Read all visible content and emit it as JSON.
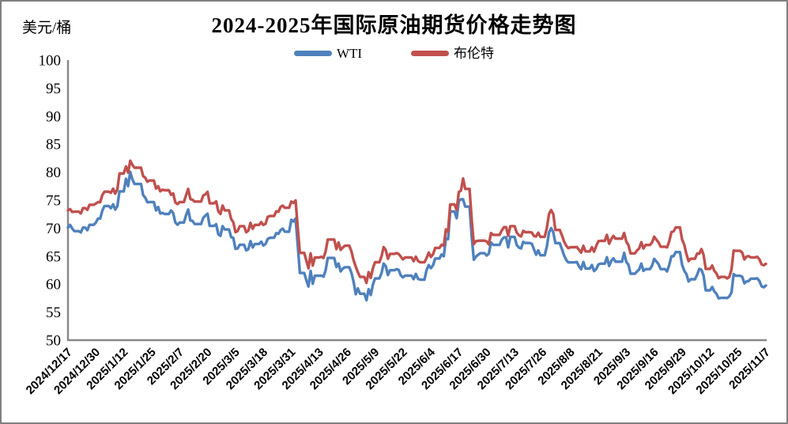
{
  "frame": {
    "border_color": "#808080",
    "background": "#ffffff",
    "axis_color": "#898989"
  },
  "chart_data": {
    "type": "line",
    "title": "2024-2025年国际原油期货价格走势图",
    "ylabel": "美元/桶",
    "ylim": [
      50,
      100
    ],
    "ytick_step": 5,
    "ytick_labels": [
      "100",
      "95",
      "90",
      "85",
      "80",
      "75",
      "70",
      "65",
      "60",
      "55",
      "50"
    ],
    "grid": false,
    "legend_position": "top-center",
    "x_tick_interval_days": 13,
    "x_tick_labels": [
      "2024/12/17",
      "2024/12/30",
      "2025/1/12",
      "2025/1/25",
      "2025/2/7",
      "2025/2/20",
      "2025/3/5",
      "2025/3/18",
      "2025/3/31",
      "2025/4/13",
      "2025/4/26",
      "2025/5/9",
      "2025/5/22",
      "2025/6/4",
      "2025/6/17",
      "2025/6/30",
      "2025/7/13",
      "2025/7/26",
      "2025/8/8",
      "2025/8/21",
      "2025/9/3",
      "2025/9/16",
      "2025/9/29",
      "2025/10/12",
      "2025/10/25",
      "2025/11/7"
    ],
    "series": [
      {
        "name": "WTI",
        "color": "#4F81BD"
      },
      {
        "name": "布伦特",
        "color": "#C0504D"
      }
    ],
    "points_format": [
      "date",
      "WTI",
      "布伦特"
    ],
    "points": [
      [
        "2024/12/17",
        70.08,
        73.19
      ],
      [
        "2024/12/18",
        70.58,
        73.39
      ],
      [
        "2024/12/19",
        69.91,
        72.88
      ],
      [
        "2024/12/20",
        69.46,
        72.94
      ],
      [
        "2024/12/23",
        69.24,
        72.63
      ],
      [
        "2024/12/24",
        70.1,
        73.58
      ],
      [
        "2024/12/26",
        69.62,
        73.26
      ],
      [
        "2024/12/27",
        70.6,
        74.17
      ],
      [
        "2024/12/30",
        70.99,
        74.39
      ],
      [
        "2024/12/31",
        71.72,
        74.64
      ],
      [
        "2025/1/2",
        73.13,
        75.93
      ],
      [
        "2025/1/3",
        73.96,
        76.51
      ],
      [
        "2025/1/6",
        73.56,
        76.3
      ],
      [
        "2025/1/7",
        74.25,
        77.05
      ],
      [
        "2025/1/8",
        73.32,
        76.16
      ],
      [
        "2025/1/9",
        73.92,
        76.92
      ],
      [
        "2025/1/10",
        76.57,
        79.76
      ],
      [
        "2025/1/13",
        78.82,
        81.01
      ],
      [
        "2025/1/14",
        77.5,
        79.92
      ],
      [
        "2025/1/15",
        80.04,
        82.03
      ],
      [
        "2025/1/16",
        78.68,
        81.29
      ],
      [
        "2025/1/17",
        77.88,
        80.79
      ],
      [
        "2025/1/21",
        75.89,
        79.29
      ],
      [
        "2025/1/22",
        75.44,
        79.0
      ],
      [
        "2025/1/23",
        74.62,
        78.29
      ],
      [
        "2025/1/24",
        74.66,
        78.5
      ],
      [
        "2025/1/27",
        73.17,
        77.08
      ],
      [
        "2025/1/28",
        73.77,
        77.49
      ],
      [
        "2025/1/29",
        72.62,
        76.58
      ],
      [
        "2025/1/30",
        72.73,
        76.87
      ],
      [
        "2025/1/31",
        72.53,
        76.76
      ],
      [
        "2025/2/3",
        73.16,
        75.96
      ],
      [
        "2025/2/4",
        72.7,
        76.2
      ],
      [
        "2025/2/5",
        71.03,
        74.61
      ],
      [
        "2025/2/6",
        70.61,
        74.29
      ],
      [
        "2025/2/7",
        71.0,
        74.66
      ],
      [
        "2025/2/10",
        72.32,
        75.87
      ],
      [
        "2025/2/11",
        73.32,
        77.0
      ],
      [
        "2025/2/12",
        71.37,
        75.18
      ],
      [
        "2025/2/13",
        71.29,
        75.05
      ],
      [
        "2025/2/14",
        70.74,
        74.74
      ],
      [
        "2025/2/18",
        71.85,
        75.84
      ],
      [
        "2025/2/19",
        72.25,
        76.04
      ],
      [
        "2025/2/20",
        72.57,
        76.48
      ],
      [
        "2025/2/21",
        70.4,
        74.43
      ],
      [
        "2025/2/24",
        70.7,
        74.78
      ],
      [
        "2025/2/25",
        68.93,
        73.02
      ],
      [
        "2025/2/26",
        68.62,
        72.53
      ],
      [
        "2025/2/27",
        70.35,
        74.04
      ],
      [
        "2025/2/28",
        69.76,
        73.18
      ],
      [
        "2025/3/3",
        68.37,
        71.62
      ],
      [
        "2025/3/4",
        68.26,
        71.04
      ],
      [
        "2025/3/5",
        66.31,
        69.3
      ],
      [
        "2025/3/6",
        66.36,
        69.46
      ],
      [
        "2025/3/7",
        67.04,
        70.36
      ],
      [
        "2025/3/10",
        66.03,
        69.28
      ],
      [
        "2025/3/11",
        66.25,
        69.56
      ],
      [
        "2025/3/12",
        67.68,
        70.95
      ],
      [
        "2025/3/13",
        66.55,
        69.88
      ],
      [
        "2025/3/14",
        67.18,
        70.58
      ],
      [
        "2025/3/17",
        67.58,
        71.07
      ],
      [
        "2025/3/18",
        66.9,
        70.56
      ],
      [
        "2025/3/19",
        67.16,
        70.78
      ],
      [
        "2025/3/20",
        68.07,
        72.0
      ],
      [
        "2025/3/21",
        68.28,
        72.16
      ],
      [
        "2025/3/24",
        69.11,
        73.0
      ],
      [
        "2025/3/25",
        69.0,
        72.92
      ],
      [
        "2025/3/26",
        69.65,
        73.79
      ],
      [
        "2025/3/27",
        69.92,
        74.03
      ],
      [
        "2025/3/28",
        69.36,
        73.63
      ],
      [
        "2025/3/31",
        71.48,
        74.74
      ],
      [
        "2025/4/1",
        71.2,
        74.49
      ],
      [
        "2025/4/2",
        71.71,
        74.95
      ],
      [
        "2025/4/3",
        66.95,
        70.14
      ],
      [
        "2025/4/4",
        61.99,
        65.58
      ],
      [
        "2025/4/7",
        60.7,
        64.21
      ],
      [
        "2025/4/8",
        59.58,
        62.82
      ],
      [
        "2025/4/9",
        62.35,
        65.48
      ],
      [
        "2025/4/10",
        60.07,
        63.33
      ],
      [
        "2025/4/11",
        61.5,
        64.76
      ],
      [
        "2025/4/14",
        61.53,
        64.88
      ],
      [
        "2025/4/15",
        61.33,
        64.67
      ],
      [
        "2025/4/16",
        62.47,
        65.85
      ],
      [
        "2025/4/17",
        64.68,
        67.96
      ],
      [
        "2025/4/21",
        63.08,
        66.26
      ],
      [
        "2025/4/22",
        63.67,
        67.44
      ],
      [
        "2025/4/23",
        62.27,
        66.12
      ],
      [
        "2025/4/24",
        62.79,
        66.55
      ],
      [
        "2025/4/25",
        63.02,
        66.87
      ],
      [
        "2025/4/28",
        62.05,
        65.86
      ],
      [
        "2025/4/29",
        60.42,
        64.25
      ],
      [
        "2025/4/30",
        58.21,
        63.12
      ],
      [
        "2025/5/1",
        59.24,
        62.13
      ],
      [
        "2025/5/2",
        58.29,
        61.29
      ],
      [
        "2025/5/5",
        57.13,
        60.23
      ],
      [
        "2025/5/6",
        59.09,
        62.15
      ],
      [
        "2025/5/7",
        58.07,
        61.12
      ],
      [
        "2025/5/8",
        59.91,
        62.84
      ],
      [
        "2025/5/9",
        61.02,
        63.91
      ],
      [
        "2025/5/12",
        61.95,
        64.96
      ],
      [
        "2025/5/13",
        63.67,
        66.63
      ],
      [
        "2025/5/14",
        63.19,
        66.09
      ],
      [
        "2025/5/15",
        61.62,
        64.53
      ],
      [
        "2025/5/16",
        62.49,
        65.41
      ],
      [
        "2025/5/19",
        62.69,
        65.54
      ],
      [
        "2025/5/20",
        62.56,
        65.38
      ],
      [
        "2025/5/21",
        61.57,
        64.91
      ],
      [
        "2025/5/22",
        61.2,
        64.44
      ],
      [
        "2025/5/23",
        61.53,
        64.78
      ],
      [
        "2025/5/27",
        60.89,
        64.09
      ],
      [
        "2025/5/28",
        61.84,
        64.9
      ],
      [
        "2025/5/29",
        60.94,
        64.15
      ],
      [
        "2025/5/30",
        60.79,
        63.9
      ],
      [
        "2025/6/2",
        62.52,
        64.63
      ],
      [
        "2025/6/3",
        63.41,
        65.63
      ],
      [
        "2025/6/4",
        62.85,
        64.86
      ],
      [
        "2025/6/5",
        63.37,
        65.34
      ],
      [
        "2025/6/6",
        64.58,
        66.47
      ],
      [
        "2025/6/9",
        65.29,
        67.04
      ],
      [
        "2025/6/10",
        64.98,
        66.87
      ],
      [
        "2025/6/11",
        68.15,
        69.77
      ],
      [
        "2025/6/12",
        68.04,
        69.36
      ],
      [
        "2025/6/13",
        72.98,
        74.23
      ],
      [
        "2025/6/16",
        71.77,
        73.23
      ],
      [
        "2025/6/17",
        74.84,
        76.45
      ],
      [
        "2025/6/18",
        75.14,
        76.7
      ],
      [
        "2025/6/19",
        75.14,
        78.85
      ],
      [
        "2025/6/20",
        73.84,
        77.01
      ],
      [
        "2025/6/23",
        68.51,
        71.48
      ],
      [
        "2025/6/24",
        64.37,
        67.14
      ],
      [
        "2025/6/25",
        64.92,
        67.68
      ],
      [
        "2025/6/26",
        65.24,
        67.73
      ],
      [
        "2025/6/27",
        65.52,
        67.77
      ],
      [
        "2025/6/30",
        65.11,
        67.61
      ],
      [
        "2025/7/1",
        65.45,
        67.11
      ],
      [
        "2025/7/2",
        67.45,
        69.11
      ],
      [
        "2025/7/3",
        67.0,
        68.8
      ],
      [
        "2025/7/7",
        67.93,
        69.58
      ],
      [
        "2025/7/8",
        68.33,
        70.15
      ],
      [
        "2025/7/9",
        68.38,
        70.19
      ],
      [
        "2025/7/10",
        66.57,
        68.64
      ],
      [
        "2025/7/11",
        68.45,
        70.36
      ],
      [
        "2025/7/14",
        66.98,
        69.21
      ],
      [
        "2025/7/15",
        66.52,
        68.71
      ],
      [
        "2025/7/16",
        66.38,
        68.52
      ],
      [
        "2025/7/17",
        67.54,
        69.52
      ],
      [
        "2025/7/18",
        67.34,
        69.28
      ],
      [
        "2025/7/21",
        67.2,
        69.21
      ],
      [
        "2025/7/22",
        66.21,
        68.59
      ],
      [
        "2025/7/23",
        65.25,
        68.51
      ],
      [
        "2025/7/24",
        66.03,
        69.18
      ],
      [
        "2025/7/25",
        65.16,
        68.44
      ],
      [
        "2025/7/28",
        66.71,
        70.04
      ],
      [
        "2025/7/29",
        69.21,
        72.51
      ],
      [
        "2025/7/30",
        70.0,
        73.24
      ],
      [
        "2025/7/31",
        69.26,
        72.53
      ],
      [
        "2025/8/1",
        67.33,
        69.67
      ],
      [
        "2025/8/4",
        66.29,
        68.76
      ],
      [
        "2025/8/5",
        65.16,
        67.64
      ],
      [
        "2025/8/6",
        64.35,
        66.89
      ],
      [
        "2025/8/7",
        63.88,
        66.43
      ],
      [
        "2025/8/8",
        63.88,
        66.59
      ],
      [
        "2025/8/11",
        63.96,
        66.63
      ],
      [
        "2025/8/12",
        63.17,
        66.12
      ],
      [
        "2025/8/13",
        62.65,
        65.63
      ],
      [
        "2025/8/14",
        63.96,
        66.84
      ],
      [
        "2025/8/15",
        62.8,
        65.85
      ],
      [
        "2025/8/18",
        63.42,
        66.6
      ],
      [
        "2025/8/19",
        62.35,
        65.79
      ],
      [
        "2025/8/20",
        62.71,
        66.84
      ],
      [
        "2025/8/21",
        63.52,
        67.67
      ],
      [
        "2025/8/22",
        63.66,
        67.73
      ],
      [
        "2025/8/25",
        64.8,
        68.8
      ],
      [
        "2025/8/26",
        63.25,
        67.22
      ],
      [
        "2025/8/27",
        64.15,
        68.05
      ],
      [
        "2025/8/28",
        64.6,
        68.62
      ],
      [
        "2025/8/29",
        64.01,
        68.12
      ],
      [
        "2025/9/2",
        65.59,
        69.14
      ],
      [
        "2025/9/3",
        63.97,
        67.6
      ],
      [
        "2025/9/4",
        63.48,
        66.99
      ],
      [
        "2025/9/5",
        61.87,
        65.5
      ],
      [
        "2025/9/8",
        62.26,
        66.02
      ],
      [
        "2025/9/9",
        62.63,
        66.39
      ],
      [
        "2025/9/10",
        63.67,
        67.49
      ],
      [
        "2025/9/11",
        62.37,
        66.37
      ],
      [
        "2025/9/12",
        62.69,
        66.99
      ],
      [
        "2025/9/15",
        63.3,
        67.44
      ],
      [
        "2025/9/16",
        64.52,
        68.47
      ],
      [
        "2025/9/17",
        64.05,
        67.95
      ],
      [
        "2025/9/18",
        63.57,
        67.44
      ],
      [
        "2025/9/19",
        62.68,
        66.68
      ],
      [
        "2025/9/22",
        62.27,
        66.57
      ],
      [
        "2025/9/23",
        63.41,
        67.63
      ],
      [
        "2025/9/24",
        64.99,
        69.31
      ],
      [
        "2025/9/25",
        64.98,
        69.42
      ],
      [
        "2025/9/26",
        65.72,
        70.13
      ],
      [
        "2025/9/29",
        63.45,
        67.97
      ],
      [
        "2025/9/30",
        62.37,
        67.02
      ],
      [
        "2025/10/1",
        61.78,
        65.35
      ],
      [
        "2025/10/2",
        60.48,
        64.11
      ],
      [
        "2025/10/3",
        60.88,
        64.53
      ],
      [
        "2025/10/6",
        61.69,
        65.47
      ],
      [
        "2025/10/7",
        62.73,
        65.45
      ],
      [
        "2025/10/8",
        62.55,
        66.25
      ],
      [
        "2025/10/9",
        61.51,
        65.22
      ],
      [
        "2025/10/10",
        58.9,
        62.73
      ],
      [
        "2025/10/13",
        59.49,
        63.32
      ],
      [
        "2025/10/14",
        58.7,
        62.39
      ],
      [
        "2025/10/15",
        58.27,
        61.91
      ],
      [
        "2025/10/16",
        57.46,
        61.06
      ],
      [
        "2025/10/17",
        57.54,
        61.29
      ],
      [
        "2025/10/20",
        57.52,
        61.01
      ],
      [
        "2025/10/21",
        57.82,
        61.32
      ],
      [
        "2025/10/22",
        58.5,
        62.59
      ],
      [
        "2025/10/23",
        61.79,
        65.99
      ],
      [
        "2025/10/24",
        61.5,
        65.94
      ],
      [
        "2025/10/27",
        61.31,
        65.62
      ],
      [
        "2025/10/28",
        60.15,
        64.4
      ],
      [
        "2025/10/29",
        60.48,
        64.92
      ],
      [
        "2025/10/30",
        60.57,
        65.0
      ],
      [
        "2025/10/31",
        60.98,
        64.77
      ],
      [
        "2025/11/3",
        61.05,
        64.89
      ],
      [
        "2025/11/4",
        60.56,
        64.44
      ],
      [
        "2025/11/5",
        59.6,
        63.52
      ],
      [
        "2025/11/6",
        59.43,
        63.38
      ],
      [
        "2025/11/7",
        59.75,
        63.63
      ]
    ]
  }
}
